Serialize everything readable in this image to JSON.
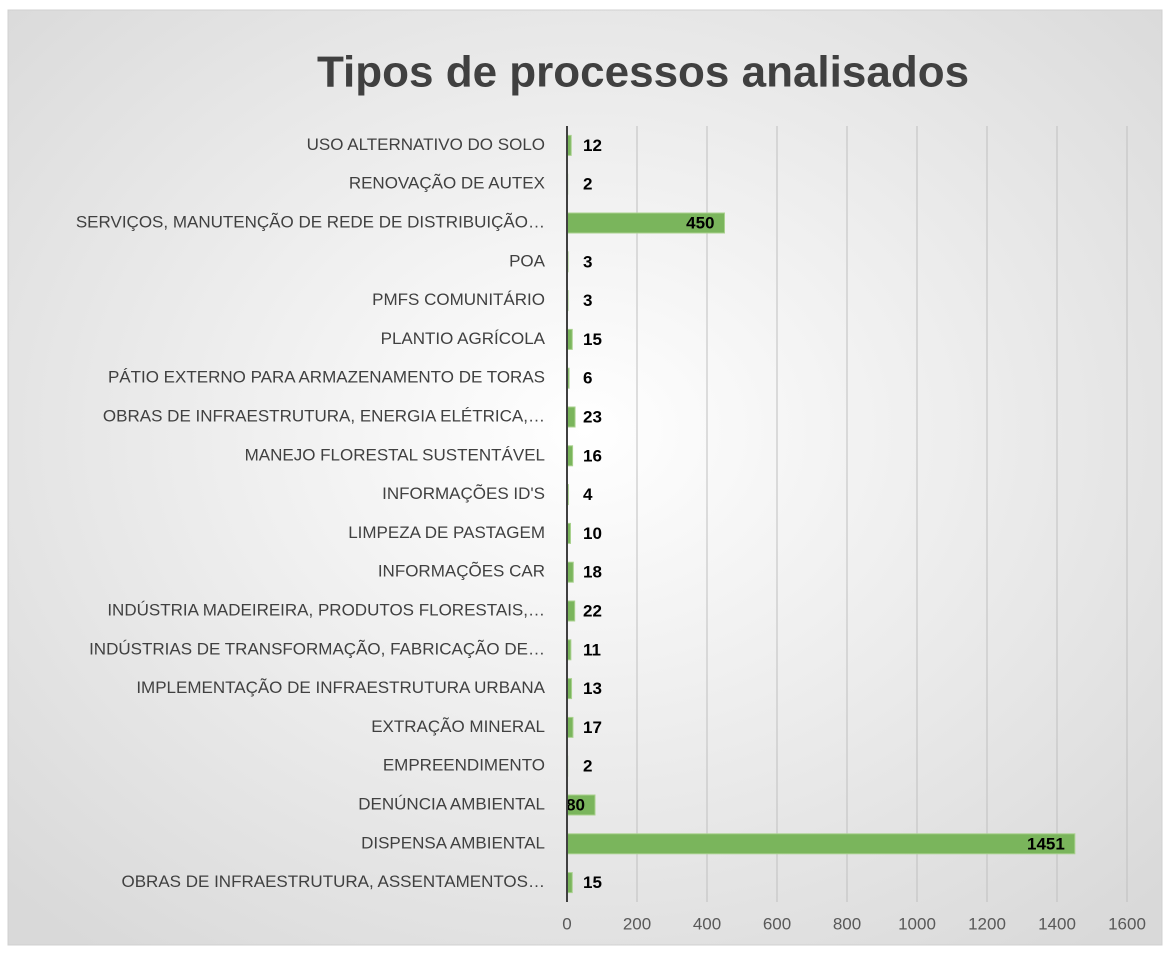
{
  "chart_data": {
    "type": "barh",
    "title": "Tipos de processos analisados",
    "categories": [
      "USO ALTERNATIVO DO SOLO",
      "RENOVAÇÃO DE AUTEX",
      "SERVIÇOS, MANUTENÇÃO DE REDE DE DISTRIBUIÇÃO…",
      "POA",
      "PMFS COMUNITÁRIO",
      "PLANTIO AGRÍCOLA",
      "PÁTIO EXTERNO PARA ARMAZENAMENTO DE TORAS",
      "OBRAS DE INFRAESTRUTURA, ENERGIA ELÉTRICA,…",
      "MANEJO FLORESTAL SUSTENTÁVEL",
      "INFORMAÇÕES ID'S",
      "LIMPEZA DE PASTAGEM",
      "INFORMAÇÕES CAR",
      "INDÚSTRIA MADEIREIRA, PRODUTOS FLORESTAIS,…",
      "INDÚSTRIAS DE TRANSFORMAÇÃO, FABRICAÇÃO DE…",
      "IMPLEMENTAÇÃO DE INFRAESTRUTURA URBANA",
      "EXTRAÇÃO MINERAL",
      "EMPREENDIMENTO ",
      "DENÚNCIA AMBIENTAL",
      "DISPENSA AMBIENTAL",
      "OBRAS DE INFRAESTRUTURA, ASSENTAMENTOS…"
    ],
    "values": [
      12,
      2,
      450,
      3,
      3,
      15,
      6,
      23,
      16,
      4,
      10,
      18,
      22,
      11,
      13,
      17,
      2,
      80,
      1451,
      15
    ],
    "color": "#7ab55c",
    "xlim": [
      0,
      1600
    ],
    "xticks": [
      0,
      200,
      400,
      600,
      800,
      1000,
      1200,
      1400,
      1600
    ],
    "grid": true
  }
}
